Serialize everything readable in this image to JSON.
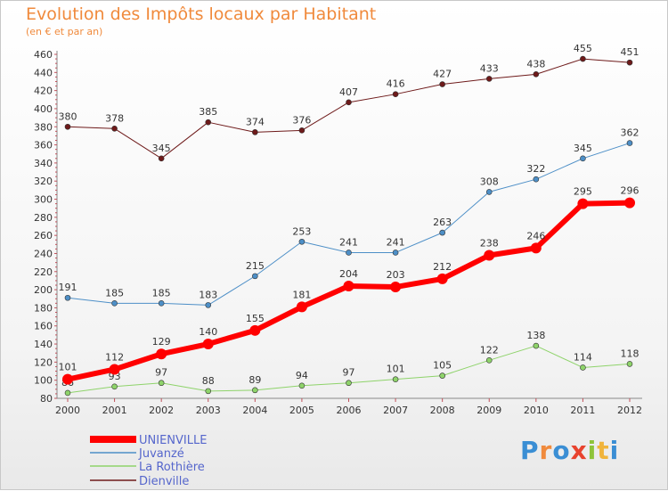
{
  "title": "Evolution des Impôts locaux par Habitant",
  "subtitle": "(en € et par an)",
  "logo": "Proxiti",
  "chart_data": {
    "type": "line",
    "title": "Evolution des Impôts locaux par Habitant",
    "subtitle": "(en € et par an)",
    "categories": [
      "2000",
      "2001",
      "2002",
      "2003",
      "2004",
      "2005",
      "2006",
      "2007",
      "2008",
      "2009",
      "2010",
      "2011",
      "2012"
    ],
    "ylim": [
      80,
      460
    ],
    "yticks": [
      80,
      100,
      120,
      140,
      160,
      180,
      200,
      220,
      240,
      260,
      280,
      300,
      320,
      340,
      360,
      380,
      400,
      420,
      440,
      460
    ],
    "grid": false,
    "legend_position": "bottom-left",
    "series": [
      {
        "name": "Dienville",
        "color": "#6e1a1a",
        "width": 1,
        "values": [
          380,
          378,
          345,
          385,
          374,
          376,
          407,
          416,
          427,
          433,
          438,
          455,
          451
        ]
      },
      {
        "name": "Juvanzé",
        "color": "#4d8fc7",
        "width": 1,
        "values": [
          191,
          185,
          185,
          183,
          215,
          253,
          241,
          241,
          263,
          308,
          322,
          345,
          362
        ]
      },
      {
        "name": "La Rothière",
        "color": "#8ed36a",
        "width": 1,
        "values": [
          86,
          93,
          97,
          88,
          89,
          94,
          97,
          101,
          105,
          122,
          138,
          114,
          118
        ]
      },
      {
        "name": "UNIENVILLE",
        "color": "#ff0000",
        "width": 6,
        "values": [
          101,
          112,
          129,
          140,
          155,
          181,
          204,
          203,
          212,
          238,
          246,
          295,
          296
        ]
      }
    ],
    "legend": [
      "UNIENVILLE",
      "Juvanzé",
      "La Rothière",
      "Dienville"
    ]
  },
  "colors": {
    "title": "#f08a3c",
    "axis": "#c0505a",
    "legend_text": "#5566cc"
  }
}
